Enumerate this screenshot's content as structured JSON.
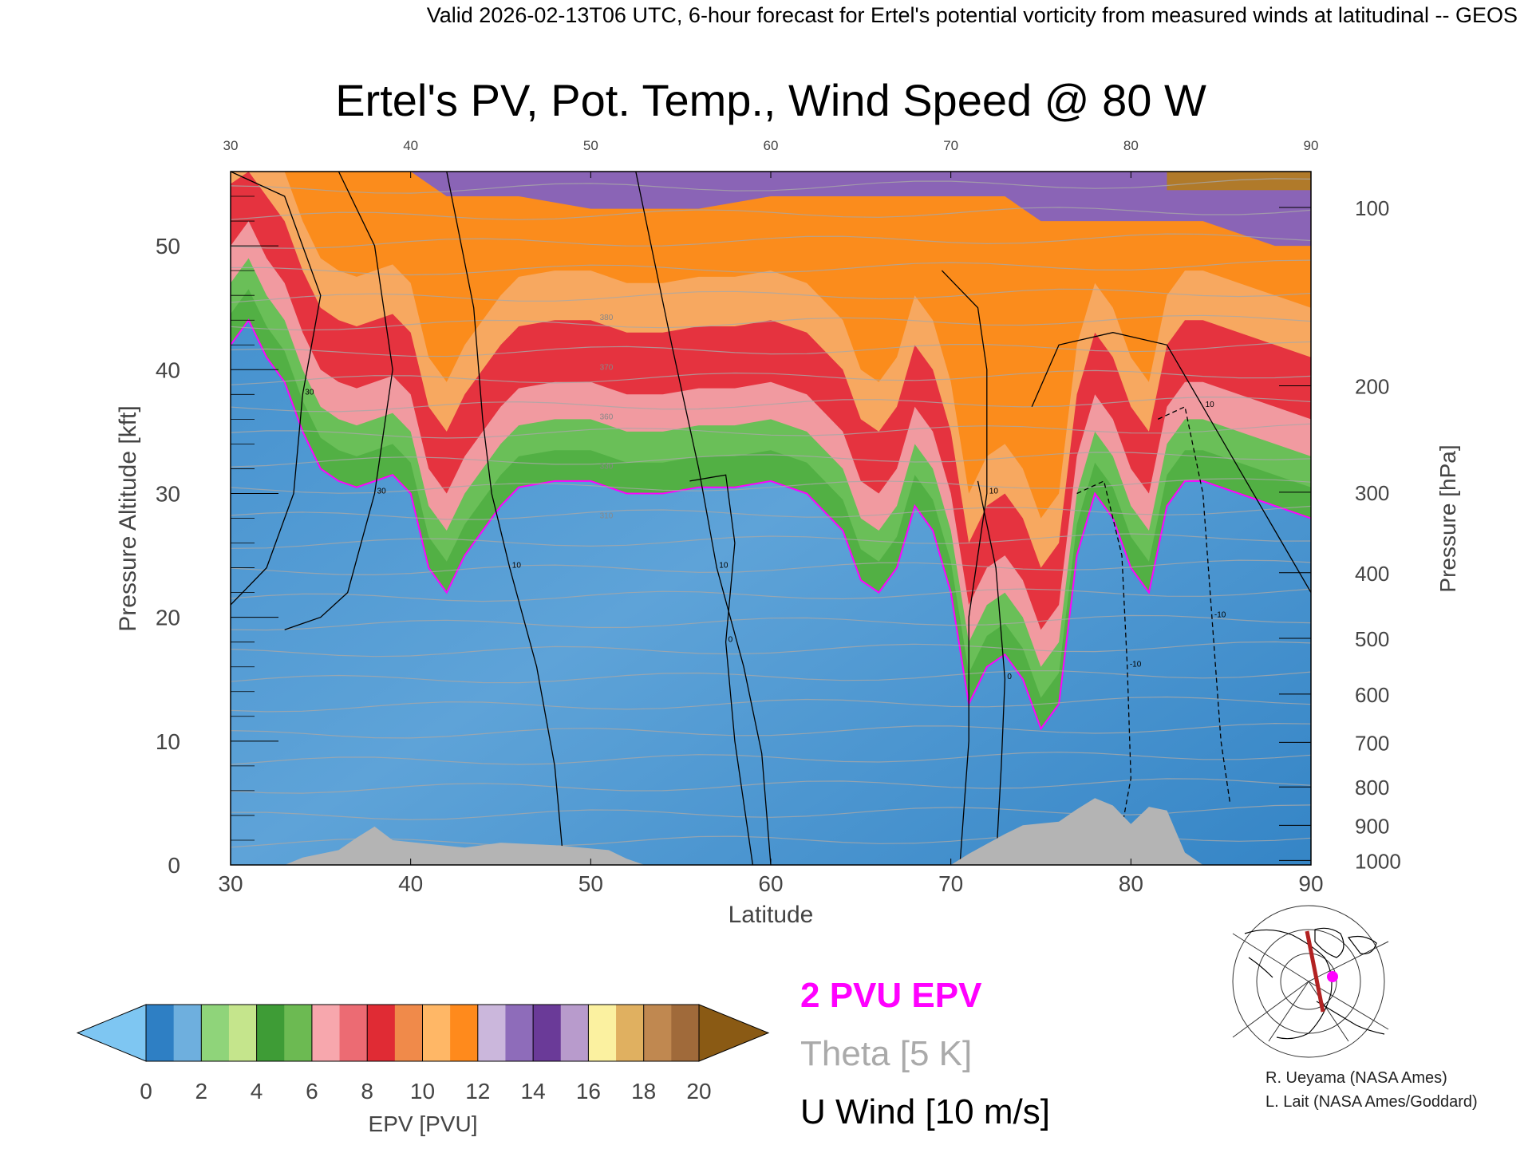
{
  "header": {
    "valid_line": "Valid 2026-02-13T06 UTC, 6-hour forecast for Ertel's potential vorticity from measured winds at latitudinal -- GEOS"
  },
  "chart_data": {
    "type": "heatmap",
    "title": "Ertel's PV, Pot. Temp., Wind Speed @ 80 W",
    "xlabel": "Latitude",
    "ylabel_left": "Pressure Altitude [kft]",
    "ylabel_right": "Pressure [hPa]",
    "xlim": [
      30,
      90
    ],
    "ylim": [
      0,
      56
    ],
    "x_ticks": [
      "30",
      "40",
      "50",
      "60",
      "70",
      "80",
      "90"
    ],
    "top_ticks": [
      "30",
      "40",
      "50",
      "60",
      "70",
      "80",
      "90"
    ],
    "y_ticks": [
      "0",
      "10",
      "20",
      "30",
      "40",
      "50"
    ],
    "pressure_ticks": [
      {
        "label": "1000",
        "kft": 0.36
      },
      {
        "label": "900",
        "kft": 3.2
      },
      {
        "label": "800",
        "kft": 6.3
      },
      {
        "label": "700",
        "kft": 9.9
      },
      {
        "label": "600",
        "kft": 13.8
      },
      {
        "label": "500",
        "kft": 18.3
      },
      {
        "label": "400",
        "kft": 23.6
      },
      {
        "label": "300",
        "kft": 30.1
      },
      {
        "label": "200",
        "kft": 38.7
      },
      {
        "label": "100",
        "kft": 53.1
      }
    ],
    "pv_boundaries": [
      {
        "lat": 30,
        "tropo": 42,
        "top": 56
      },
      {
        "lat": 31,
        "tropo": 44,
        "top": 56
      },
      {
        "lat": 32,
        "tropo": 41,
        "top": 56
      },
      {
        "lat": 33,
        "tropo": 39,
        "top": 56
      },
      {
        "lat": 34,
        "tropo": 35,
        "top": 56
      },
      {
        "lat": 35,
        "tropo": 32,
        "top": 56
      },
      {
        "lat": 36,
        "tropo": 31,
        "top": 56
      },
      {
        "lat": 37,
        "tropo": 30.5,
        "top": 56
      },
      {
        "lat": 38,
        "tropo": 31,
        "top": 56
      },
      {
        "lat": 39,
        "tropo": 31.5,
        "top": 56
      },
      {
        "lat": 40,
        "tropo": 30,
        "top": 56
      },
      {
        "lat": 41,
        "tropo": 24,
        "top": 55
      },
      {
        "lat": 42,
        "tropo": 22,
        "top": 54
      },
      {
        "lat": 43,
        "tropo": 25,
        "top": 54
      },
      {
        "lat": 44,
        "tropo": 27,
        "top": 54
      },
      {
        "lat": 45,
        "tropo": 29,
        "top": 54
      },
      {
        "lat": 46,
        "tropo": 30.5,
        "top": 54
      },
      {
        "lat": 48,
        "tropo": 31,
        "top": 53.5
      },
      {
        "lat": 50,
        "tropo": 31,
        "top": 53
      },
      {
        "lat": 52,
        "tropo": 30,
        "top": 53
      },
      {
        "lat": 54,
        "tropo": 30,
        "top": 53
      },
      {
        "lat": 56,
        "tropo": 30.5,
        "top": 53
      },
      {
        "lat": 58,
        "tropo": 30.5,
        "top": 53.5
      },
      {
        "lat": 60,
        "tropo": 31,
        "top": 54
      },
      {
        "lat": 62,
        "tropo": 30,
        "top": 54
      },
      {
        "lat": 64,
        "tropo": 27,
        "top": 54
      },
      {
        "lat": 65,
        "tropo": 23,
        "top": 54
      },
      {
        "lat": 66,
        "tropo": 22,
        "top": 54
      },
      {
        "lat": 67,
        "tropo": 24,
        "top": 54
      },
      {
        "lat": 68,
        "tropo": 29,
        "top": 54
      },
      {
        "lat": 69,
        "tropo": 27,
        "top": 54
      },
      {
        "lat": 70,
        "tropo": 22,
        "top": 54
      },
      {
        "lat": 71,
        "tropo": 13,
        "top": 54
      },
      {
        "lat": 72,
        "tropo": 16,
        "top": 54
      },
      {
        "lat": 73,
        "tropo": 17,
        "top": 54
      },
      {
        "lat": 74,
        "tropo": 15,
        "top": 53
      },
      {
        "lat": 75,
        "tropo": 11,
        "top": 52
      },
      {
        "lat": 76,
        "tropo": 13,
        "top": 52
      },
      {
        "lat": 77,
        "tropo": 25,
        "top": 52
      },
      {
        "lat": 78,
        "tropo": 30,
        "top": 52
      },
      {
        "lat": 79,
        "tropo": 28,
        "top": 52
      },
      {
        "lat": 80,
        "tropo": 24,
        "top": 52
      },
      {
        "lat": 81,
        "tropo": 22,
        "top": 52
      },
      {
        "lat": 82,
        "tropo": 29,
        "top": 52
      },
      {
        "lat": 83,
        "tropo": 31,
        "top": 52
      },
      {
        "lat": 84,
        "tropo": 31,
        "top": 52
      },
      {
        "lat": 86,
        "tropo": 30,
        "top": 51
      },
      {
        "lat": 88,
        "tropo": 29,
        "top": 50
      },
      {
        "lat": 90,
        "tropo": 28,
        "top": 50
      }
    ],
    "layers_above_tropopause_kft": [
      {
        "name": "green",
        "offset": 0,
        "color": "#52b044"
      },
      {
        "name": "light-green",
        "offset": 2.5,
        "color": "#6abf58"
      },
      {
        "name": "pink",
        "offset": 5,
        "color": "#f19aa0"
      },
      {
        "name": "red",
        "offset": 8,
        "color": "#e5333f"
      },
      {
        "name": "salmon",
        "offset": 13,
        "color": "#f7a860"
      },
      {
        "name": "orange",
        "offset": 17,
        "color": "#fb8c1c"
      }
    ],
    "surface_kft": [
      {
        "lat": 30,
        "kft": 0
      },
      {
        "lat": 33,
        "kft": 0
      },
      {
        "lat": 34,
        "kft": 0.6
      },
      {
        "lat": 36,
        "kft": 1.2
      },
      {
        "lat": 37,
        "kft": 2.2
      },
      {
        "lat": 38,
        "kft": 3.1
      },
      {
        "lat": 39,
        "kft": 2.0
      },
      {
        "lat": 41,
        "kft": 1.7
      },
      {
        "lat": 43,
        "kft": 1.4
      },
      {
        "lat": 45,
        "kft": 1.8
      },
      {
        "lat": 48,
        "kft": 1.6
      },
      {
        "lat": 51,
        "kft": 1.2
      },
      {
        "lat": 52,
        "kft": 0.5
      },
      {
        "lat": 53,
        "kft": 0
      },
      {
        "lat": 70,
        "kft": 0
      },
      {
        "lat": 71,
        "kft": 0.9
      },
      {
        "lat": 73,
        "kft": 2.5
      },
      {
        "lat": 74,
        "kft": 3.2
      },
      {
        "lat": 76,
        "kft": 3.5
      },
      {
        "lat": 77,
        "kft": 4.5
      },
      {
        "lat": 78,
        "kft": 5.4
      },
      {
        "lat": 79,
        "kft": 4.8
      },
      {
        "lat": 80,
        "kft": 3.3
      },
      {
        "lat": 81,
        "kft": 4.7
      },
      {
        "lat": 82,
        "kft": 4.4
      },
      {
        "lat": 83,
        "kft": 1.0
      },
      {
        "lat": 84,
        "kft": 0
      },
      {
        "lat": 90,
        "kft": 0
      }
    ],
    "wind_contours": [
      {
        "label": "10",
        "dashed": false,
        "points": [
          [
            52.5,
            56
          ],
          [
            54.5,
            42
          ],
          [
            56,
            32
          ],
          [
            57,
            24
          ],
          [
            58.5,
            16
          ],
          [
            59.5,
            9
          ],
          [
            60,
            0
          ]
        ]
      },
      {
        "label": "0",
        "dashed": false,
        "points": [
          [
            55.5,
            31
          ],
          [
            57.5,
            31.5
          ],
          [
            58,
            26
          ],
          [
            57.5,
            18
          ],
          [
            58,
            10
          ],
          [
            59,
            0
          ]
        ]
      },
      {
        "label": "10",
        "dashed": false,
        "points": [
          [
            69.5,
            48
          ],
          [
            71.5,
            45
          ],
          [
            72,
            40
          ],
          [
            72,
            30
          ],
          [
            71,
            20
          ],
          [
            71,
            10
          ],
          [
            70.5,
            0
          ]
        ]
      },
      {
        "label": "0",
        "dashed": false,
        "points": [
          [
            71.5,
            31
          ],
          [
            72.5,
            24
          ],
          [
            73,
            15
          ],
          [
            72.8,
            8
          ],
          [
            72.5,
            0
          ]
        ]
      },
      {
        "label": "10",
        "dashed": false,
        "points": [
          [
            74.5,
            37
          ],
          [
            76,
            42
          ],
          [
            79,
            43
          ],
          [
            82,
            42
          ],
          [
            84,
            37
          ],
          [
            86,
            32
          ],
          [
            88,
            27
          ],
          [
            90,
            22
          ]
        ]
      },
      {
        "label": "-10",
        "dashed": true,
        "points": [
          [
            77,
            30
          ],
          [
            78.5,
            31
          ],
          [
            79.5,
            25
          ],
          [
            79.8,
            16
          ],
          [
            80,
            7
          ],
          [
            79.5,
            3
          ]
        ]
      },
      {
        "label": "-10",
        "dashed": true,
        "points": [
          [
            81.5,
            36
          ],
          [
            83,
            37
          ],
          [
            84,
            30
          ],
          [
            84.5,
            20
          ],
          [
            85,
            10
          ],
          [
            85.5,
            5
          ]
        ]
      },
      {
        "label": "30",
        "dashed": false,
        "points": [
          [
            30,
            56
          ],
          [
            33,
            54
          ],
          [
            35,
            46
          ],
          [
            34,
            38
          ],
          [
            33.5,
            30
          ],
          [
            32,
            24
          ],
          [
            30,
            21
          ]
        ]
      },
      {
        "label": "30",
        "dashed": false,
        "points": [
          [
            36,
            56
          ],
          [
            38,
            50
          ],
          [
            39,
            40
          ],
          [
            38,
            30
          ],
          [
            36.5,
            22
          ],
          [
            35,
            20
          ],
          [
            33,
            19
          ]
        ]
      },
      {
        "label": "10",
        "dashed": false,
        "points": [
          [
            42,
            56
          ],
          [
            43.5,
            45
          ],
          [
            44,
            36
          ],
          [
            44.5,
            30
          ],
          [
            45.5,
            24
          ],
          [
            47,
            16
          ],
          [
            48,
            8
          ],
          [
            48.5,
            0
          ]
        ]
      }
    ],
    "theta_labels": [
      "380",
      "370",
      "360",
      "330",
      "310"
    ],
    "legend": {
      "pv_label": "2 PVU EPV",
      "theta_label": "Theta [5 K]",
      "wind_label": "U Wind [10 m/s]"
    },
    "colorbar": {
      "label": "EPV [PVU]",
      "ticks": [
        "0",
        "2",
        "4",
        "6",
        "8",
        "10",
        "12",
        "14",
        "16",
        "18",
        "20"
      ],
      "colors": [
        "#2e7fc4",
        "#6eafde",
        "#8fd47a",
        "#c5e58c",
        "#3e9c36",
        "#6cba52",
        "#f7a7ad",
        "#ec6b73",
        "#e02b34",
        "#f08a4a",
        "#ffb766",
        "#ff8a1c",
        "#cbb7dc",
        "#8e6cba",
        "#6a3a98",
        "#b89bcc",
        "#fbf1a0",
        "#e0b060",
        "#c08850",
        "#a06a3a"
      ],
      "under_color": "#7ec6f2",
      "over_color": "#8a5a14"
    },
    "credits": [
      "R. Ueyama (NASA Ames)",
      "L. Lait (NASA Ames/Goddard)"
    ],
    "map_inset": {
      "marker_color": "#ff00ff",
      "line_color": "#b22222"
    }
  }
}
